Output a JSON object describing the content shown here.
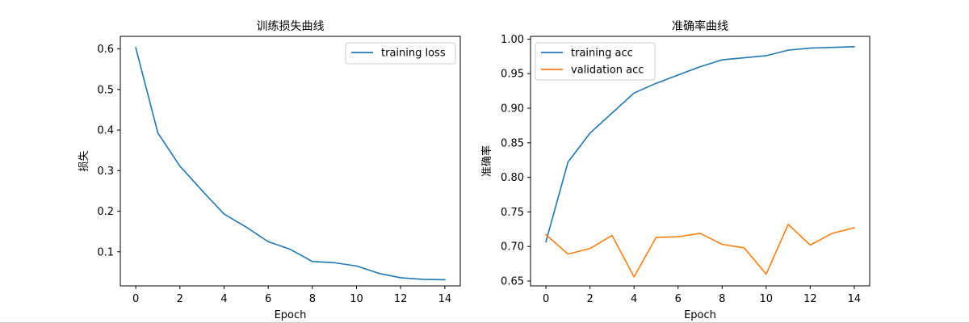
{
  "chart_data": [
    {
      "type": "line",
      "title": "训练损失曲线",
      "xlabel": "Epoch",
      "ylabel": "损失",
      "xlim": [
        -0.7,
        14.7
      ],
      "ylim": [
        0.016,
        0.631
      ],
      "x_ticks": [
        0,
        2,
        4,
        6,
        8,
        10,
        12,
        14
      ],
      "y_ticks": [
        0.1,
        0.2,
        0.3,
        0.4,
        0.5,
        0.6
      ],
      "legend_position": "top-right",
      "grid": false,
      "x": [
        0,
        1,
        2,
        3,
        4,
        5,
        6,
        7,
        8,
        9,
        10,
        11,
        12,
        13,
        14
      ],
      "series": [
        {
          "name": "training loss",
          "color": "#1f77b4",
          "values": [
            0.603,
            0.393,
            0.311,
            0.251,
            0.193,
            0.161,
            0.125,
            0.106,
            0.076,
            0.073,
            0.065,
            0.047,
            0.036,
            0.032,
            0.031
          ]
        }
      ]
    },
    {
      "type": "line",
      "title": "准确率曲线",
      "xlabel": "Epoch",
      "ylabel": "准确率",
      "xlim": [
        -0.7,
        14.7
      ],
      "ylim": [
        0.643,
        1.004
      ],
      "x_ticks": [
        0,
        2,
        4,
        6,
        8,
        10,
        12,
        14
      ],
      "y_ticks": [
        0.65,
        0.7,
        0.75,
        0.8,
        0.85,
        0.9,
        0.95,
        1.0
      ],
      "legend_position": "top-left",
      "grid": false,
      "x": [
        0,
        1,
        2,
        3,
        4,
        5,
        6,
        7,
        8,
        9,
        10,
        11,
        12,
        13,
        14
      ],
      "series": [
        {
          "name": "training acc",
          "color": "#1f77b4",
          "values": [
            0.707,
            0.822,
            0.864,
            0.893,
            0.922,
            0.936,
            0.948,
            0.96,
            0.97,
            0.973,
            0.976,
            0.984,
            0.987,
            0.988,
            0.989
          ]
        },
        {
          "name": "validation acc",
          "color": "#ff7f0e",
          "values": [
            0.717,
            0.689,
            0.697,
            0.716,
            0.656,
            0.713,
            0.714,
            0.719,
            0.703,
            0.698,
            0.66,
            0.732,
            0.702,
            0.719,
            0.727
          ]
        }
      ]
    }
  ]
}
